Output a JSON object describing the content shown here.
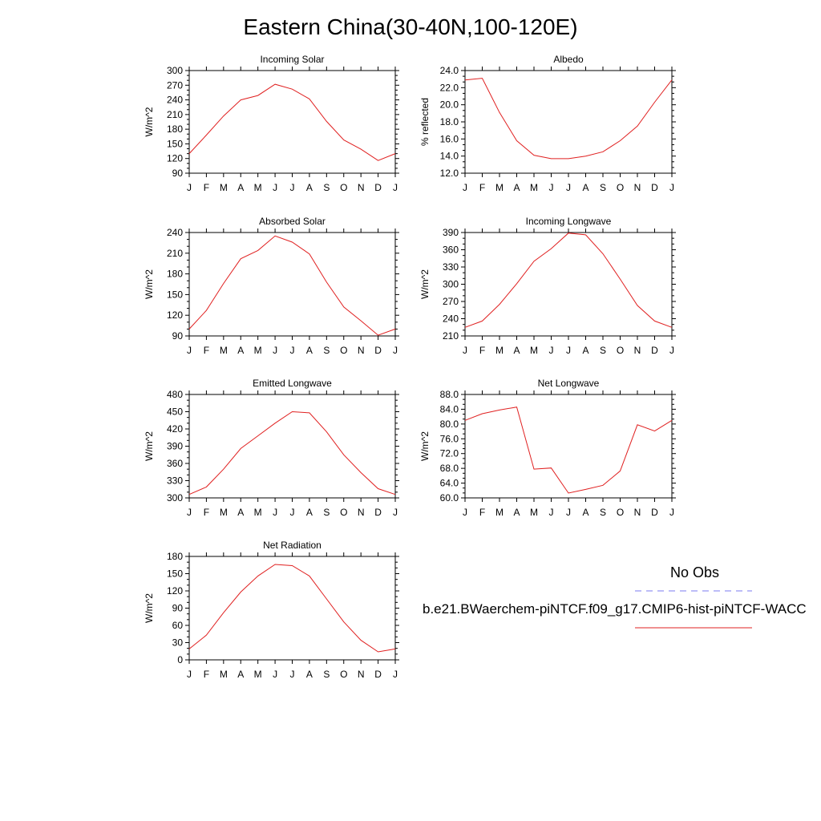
{
  "title": "Eastern China(30-40N,100-120E)",
  "legend": {
    "obs_label": "No Obs",
    "obs_color": "#7b7bf0",
    "model_label": "b.e21.BWaerchem-piNTCF.f09_g17.CMIP6-hist-piNTCF-WACC",
    "model_color": "#e02020"
  },
  "chart_data": [
    {
      "type": "line",
      "title": "Incoming Solar",
      "ylabel": "W/m^2",
      "categories": [
        "J",
        "F",
        "M",
        "A",
        "M",
        "J",
        "J",
        "A",
        "S",
        "O",
        "N",
        "D",
        "J"
      ],
      "ylim": [
        90,
        300
      ],
      "yticks": [
        90,
        120,
        150,
        180,
        210,
        240,
        270,
        300
      ],
      "ydecimals": 0,
      "series": [
        {
          "values": [
            130,
            168,
            207,
            240,
            249,
            272,
            262,
            242,
            196,
            158,
            139,
            116,
            130
          ]
        }
      ]
    },
    {
      "type": "line",
      "title": "Albedo",
      "ylabel": "% reflected",
      "categories": [
        "J",
        "F",
        "M",
        "A",
        "M",
        "J",
        "J",
        "A",
        "S",
        "O",
        "N",
        "D",
        "J"
      ],
      "ylim": [
        12,
        24
      ],
      "yticks": [
        12,
        14,
        16,
        18,
        20,
        22,
        24
      ],
      "ydecimals": 1,
      "series": [
        {
          "values": [
            22.9,
            23.1,
            19.1,
            15.8,
            14.1,
            13.7,
            13.7,
            14.0,
            14.5,
            15.8,
            17.5,
            20.3,
            22.9
          ]
        }
      ]
    },
    {
      "type": "line",
      "title": "Absorbed Solar",
      "ylabel": "W/m^2",
      "categories": [
        "J",
        "F",
        "M",
        "A",
        "M",
        "J",
        "J",
        "A",
        "S",
        "O",
        "N",
        "D",
        "J"
      ],
      "ylim": [
        90,
        240
      ],
      "yticks": [
        90,
        120,
        150,
        180,
        210,
        240
      ],
      "ydecimals": 0,
      "series": [
        {
          "values": [
            100,
            127,
            166,
            202,
            214,
            235,
            226,
            209,
            168,
            132,
            112,
            91,
            100
          ]
        }
      ]
    },
    {
      "type": "line",
      "title": "Incoming Longwave",
      "ylabel": "W/m^2",
      "categories": [
        "J",
        "F",
        "M",
        "A",
        "M",
        "J",
        "J",
        "A",
        "S",
        "O",
        "N",
        "D",
        "J"
      ],
      "ylim": [
        210,
        390
      ],
      "yticks": [
        210,
        240,
        270,
        300,
        330,
        360,
        390
      ],
      "ydecimals": 0,
      "series": [
        {
          "values": [
            225,
            236,
            265,
            301,
            340,
            362,
            389,
            386,
            353,
            309,
            263,
            236,
            225
          ]
        }
      ]
    },
    {
      "type": "line",
      "title": "Emitted Longwave",
      "ylabel": "W/m^2",
      "categories": [
        "J",
        "F",
        "M",
        "A",
        "M",
        "J",
        "J",
        "A",
        "S",
        "O",
        "N",
        "D",
        "J"
      ],
      "ylim": [
        300,
        480
      ],
      "yticks": [
        300,
        330,
        360,
        390,
        420,
        450,
        480
      ],
      "ydecimals": 0,
      "series": [
        {
          "values": [
            306,
            319,
            350,
            386,
            408,
            430,
            450,
            448,
            415,
            375,
            344,
            316,
            306
          ]
        }
      ]
    },
    {
      "type": "line",
      "title": "Net Longwave",
      "ylabel": "W/m^2",
      "categories": [
        "J",
        "F",
        "M",
        "A",
        "M",
        "J",
        "J",
        "A",
        "S",
        "O",
        "N",
        "D",
        "J"
      ],
      "ylim": [
        60,
        88
      ],
      "yticks": [
        60,
        64,
        68,
        72,
        76,
        80,
        84,
        88
      ],
      "ydecimals": 1,
      "series": [
        {
          "values": [
            81.0,
            82.8,
            83.8,
            84.6,
            67.8,
            68.1,
            61.3,
            62.3,
            63.4,
            67.3,
            79.8,
            78.1,
            81.0
          ]
        }
      ]
    },
    {
      "type": "line",
      "title": "Net Radiation",
      "ylabel": "W/m^2",
      "categories": [
        "J",
        "F",
        "M",
        "A",
        "M",
        "J",
        "J",
        "A",
        "S",
        "O",
        "N",
        "D",
        "J"
      ],
      "ylim": [
        0,
        180
      ],
      "yticks": [
        0,
        30,
        60,
        90,
        120,
        150,
        180
      ],
      "ydecimals": 0,
      "series": [
        {
          "values": [
            19,
            43,
            82,
            118,
            146,
            166,
            164,
            146,
            106,
            66,
            34,
            14,
            19
          ]
        }
      ]
    }
  ]
}
